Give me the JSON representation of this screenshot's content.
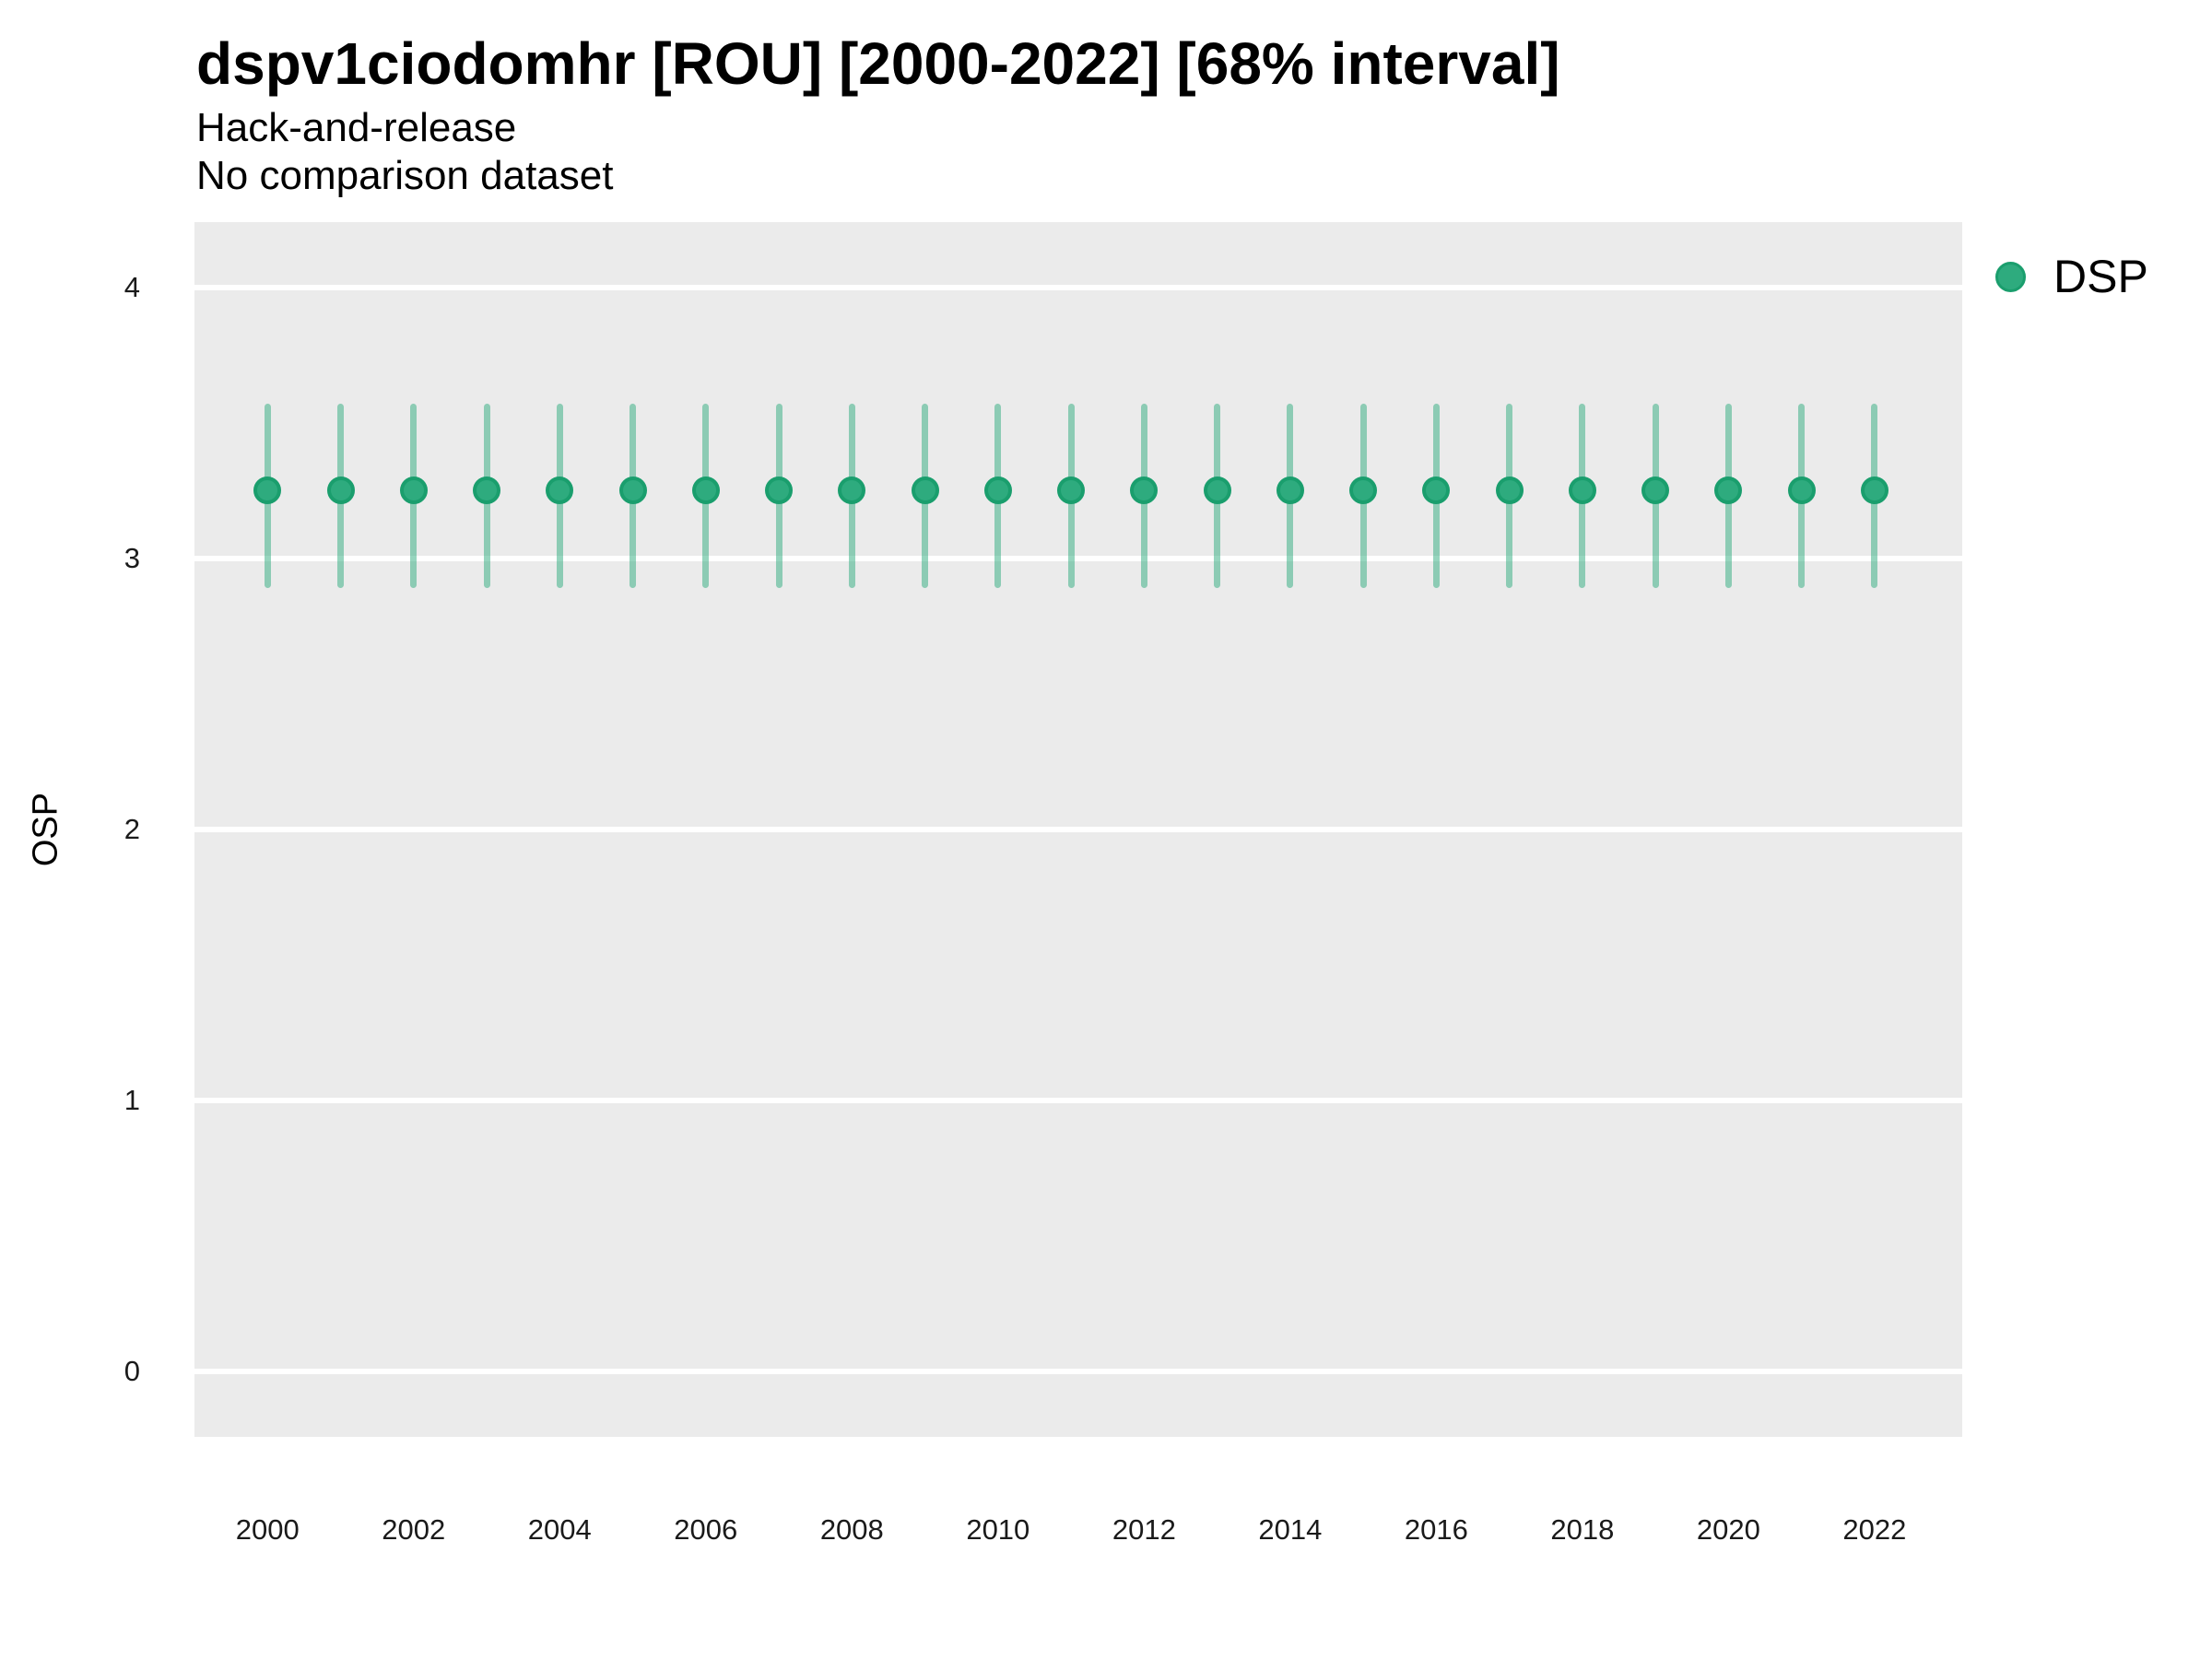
{
  "header": {
    "title": "dspv1ciodomhr [ROU] [2000-2022] [68% interval]",
    "subtitle_line1": "Hack-and-release",
    "subtitle_line2": "No comparison dataset"
  },
  "legend": {
    "position": "right",
    "items": [
      {
        "label": "DSP",
        "marker": "circle-icon",
        "color": "#2eab7e"
      }
    ]
  },
  "colors": {
    "panel_background": "#ebebeb",
    "gridline": "#ffffff",
    "point_fill": "#2eab7e",
    "point_stroke": "#1a9e6d",
    "errorbar": "rgba(46, 171, 126, 0.5)",
    "tick_text": "#1a1a1a",
    "title_text": "#000000"
  },
  "chart_data": {
    "type": "scatter",
    "title": "dspv1ciodomhr [ROU] [2000-2022] [68% interval]",
    "subtitle": [
      "Hack-and-release",
      "No comparison dataset"
    ],
    "xlabel": "",
    "ylabel": "OSP",
    "interval_label": "68% interval",
    "grid": "horizontal major gridlines, white on gray panel",
    "legend_position": "right",
    "x_ticks": [
      2000,
      2002,
      2004,
      2006,
      2008,
      2010,
      2012,
      2014,
      2016,
      2018,
      2020,
      2022
    ],
    "y_ticks": [
      4,
      3,
      2,
      1,
      0
    ],
    "xlim": [
      1999.0,
      2023.2
    ],
    "ylim": [
      -0.24,
      4.24
    ],
    "x": [
      2000,
      2001,
      2002,
      2003,
      2004,
      2005,
      2006,
      2007,
      2008,
      2009,
      2010,
      2011,
      2012,
      2013,
      2014,
      2015,
      2016,
      2017,
      2018,
      2019,
      2020,
      2021,
      2022
    ],
    "series": [
      {
        "name": "DSP",
        "color": "#2eab7e",
        "y": [
          3.25,
          3.25,
          3.25,
          3.25,
          3.25,
          3.25,
          3.25,
          3.25,
          3.25,
          3.25,
          3.25,
          3.25,
          3.25,
          3.25,
          3.25,
          3.25,
          3.25,
          3.25,
          3.25,
          3.25,
          3.25,
          3.25,
          3.25
        ],
        "y_low": [
          2.89,
          2.89,
          2.89,
          2.89,
          2.89,
          2.89,
          2.89,
          2.89,
          2.89,
          2.89,
          2.89,
          2.89,
          2.89,
          2.89,
          2.89,
          2.89,
          2.89,
          2.89,
          2.89,
          2.89,
          2.89,
          2.89,
          2.89
        ],
        "y_high": [
          3.57,
          3.57,
          3.57,
          3.57,
          3.57,
          3.57,
          3.57,
          3.57,
          3.57,
          3.57,
          3.57,
          3.57,
          3.57,
          3.57,
          3.57,
          3.57,
          3.57,
          3.57,
          3.57,
          3.57,
          3.57,
          3.57,
          3.57
        ]
      }
    ]
  }
}
